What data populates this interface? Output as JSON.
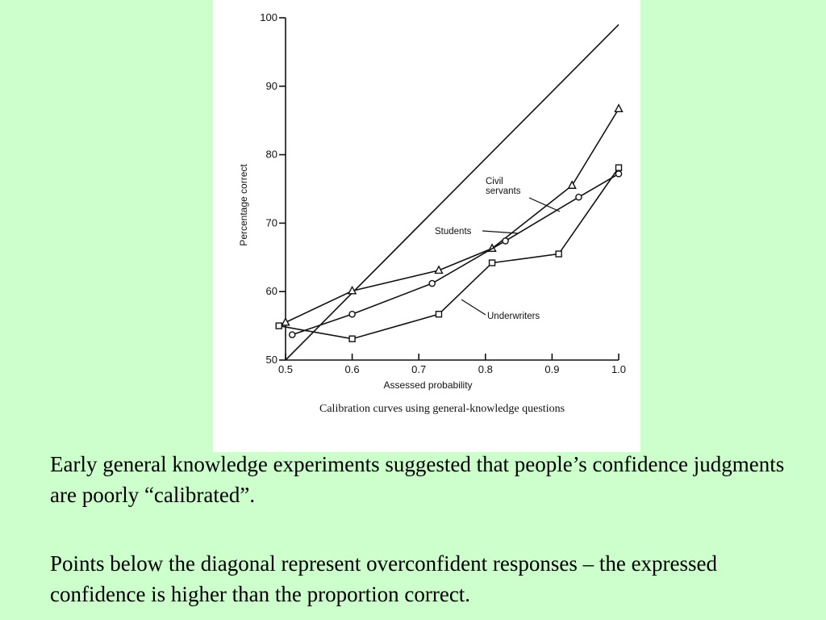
{
  "chart_data": {
    "type": "line",
    "title": "",
    "caption": "Calibration curves using general-knowledge questions",
    "xlabel": "Assessed probability",
    "ylabel": "Percentage correct",
    "xlim": [
      0.5,
      1.0
    ],
    "ylim": [
      50,
      100
    ],
    "x_ticks": [
      "0.5",
      "0.6",
      "0.7",
      "0.8",
      "0.9",
      "1.0"
    ],
    "y_ticks": [
      "50",
      "60",
      "70",
      "80",
      "90",
      "100"
    ],
    "grid": false,
    "legend": "none",
    "series": [
      {
        "name": "",
        "style": "diagonal",
        "marker": "none",
        "x": [
          0.5,
          1.0
        ],
        "y": [
          50,
          99
        ]
      },
      {
        "name": "Civil servants",
        "marker": "triangle",
        "x": [
          0.5,
          0.6,
          0.73,
          0.81,
          0.93,
          1.0
        ],
        "y": [
          55.5,
          60.1,
          63.1,
          66.3,
          75.5,
          86.7
        ]
      },
      {
        "name": "Students",
        "marker": "circle",
        "x": [
          0.51,
          0.6,
          0.72,
          0.83,
          0.94,
          1.0
        ],
        "y": [
          53.7,
          56.7,
          61.2,
          67.4,
          73.8,
          77.2
        ]
      },
      {
        "name": "Underwriters",
        "marker": "square",
        "x": [
          0.49,
          0.6,
          0.73,
          0.81,
          0.91,
          1.0
        ],
        "y": [
          55.0,
          53.1,
          56.7,
          64.2,
          65.5,
          78.1
        ]
      }
    ],
    "annotations": [
      {
        "text_lines": [
          "Civil",
          "servants"
        ],
        "series": "Civil servants"
      },
      {
        "text_lines": [
          "Students"
        ],
        "series": "Students"
      },
      {
        "text_lines": [
          "Underwriters"
        ],
        "series": "Underwriters"
      }
    ]
  },
  "text": {
    "paragraph_1": "Early general knowledge experiments suggested that people’s confidence judgments are poorly “calibrated”.",
    "paragraph_2": "Points below the diagonal represent overconfident responses – the expressed confidence is higher than the proportion correct."
  }
}
